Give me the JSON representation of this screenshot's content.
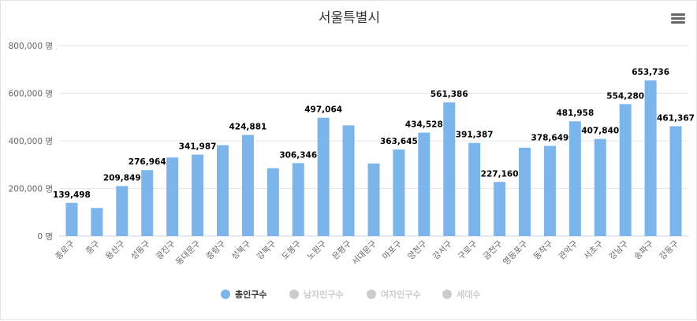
{
  "chart_data": {
    "type": "bar",
    "title": "서울특별시",
    "xlabel": "",
    "ylabel": "",
    "ylim": [
      0,
      800000
    ],
    "yticks": [
      0,
      200000,
      400000,
      600000,
      800000
    ],
    "ytick_labels": [
      "0 명",
      "200,000 명",
      "400,000 명",
      "600,000 명",
      "800,000 명"
    ],
    "grid": true,
    "legend_position": "bottom",
    "categories": [
      "종로구",
      "중구",
      "용산구",
      "성동구",
      "광진구",
      "동대문구",
      "중랑구",
      "성북구",
      "강북구",
      "도봉구",
      "노원구",
      "은평구",
      "서대문구",
      "마포구",
      "양천구",
      "강서구",
      "구로구",
      "금천구",
      "영등포구",
      "동작구",
      "관악구",
      "서초구",
      "강남구",
      "송파구",
      "강동구"
    ],
    "series": [
      {
        "name": "총인구수",
        "color": "#7cb5ec",
        "values": [
          139498,
          118000,
          209849,
          276964,
          330000,
          341987,
          382000,
          424881,
          285000,
          306346,
          497064,
          465000,
          305000,
          363645,
          434528,
          561386,
          391387,
          227160,
          371000,
          378649,
          481958,
          407840,
          554280,
          653736,
          461367
        ],
        "labels": [
          "139,498",
          "",
          "209,849",
          "276,964",
          "",
          "341,987",
          "",
          "424,881",
          "",
          "306,346",
          "497,064",
          "",
          "",
          "363,645",
          "434,528",
          "561,386",
          "391,387",
          "227,160",
          "",
          "378,649",
          "481,958",
          "407,840",
          "554,280",
          "653,736",
          "461,367"
        ]
      }
    ],
    "legend": [
      {
        "name": "총인구수",
        "active": true,
        "color": "#7cb5ec"
      },
      {
        "name": "남자인구수",
        "active": false,
        "color": "#cccccc"
      },
      {
        "name": "여자인구수",
        "active": false,
        "color": "#cccccc"
      },
      {
        "name": "세대수",
        "active": false,
        "color": "#cccccc"
      }
    ]
  },
  "menu": {
    "icon": "hamburger-menu-icon"
  },
  "colors": {
    "grid": "#e6e6e6",
    "axis_text": "#666666",
    "label_text": "#000000",
    "title": "#333333",
    "inactive": "#cccccc"
  }
}
